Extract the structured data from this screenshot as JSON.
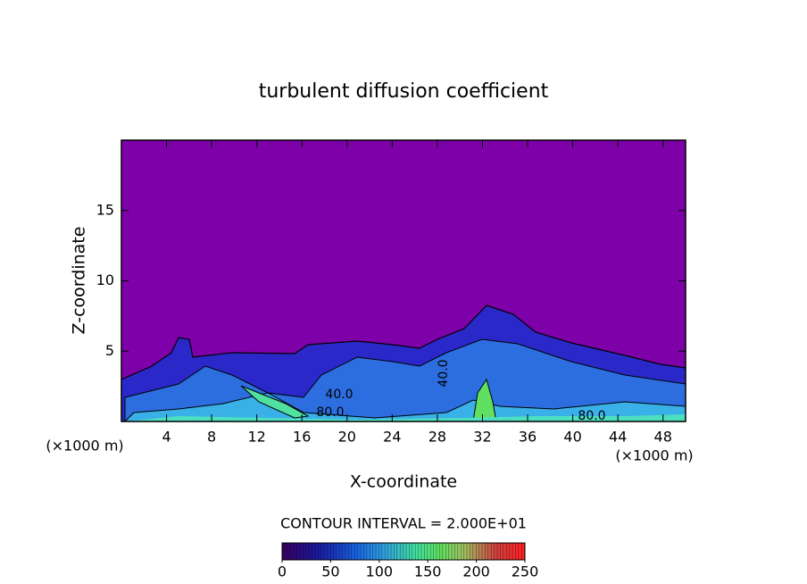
{
  "chart_data": {
    "type": "contour",
    "title": "turbulent diffusion coefficient",
    "x_label": "X-coordinate",
    "y_label": "Z-coordinate",
    "x_unit": "(×1000 m)",
    "xlim": [
      0,
      50
    ],
    "xticks": [
      4,
      8,
      12,
      16,
      20,
      24,
      28,
      32,
      36,
      40,
      44,
      48
    ],
    "ylim": [
      0,
      20
    ],
    "yticks": [
      5,
      10,
      15
    ],
    "background_color": "#7e00a8",
    "contour_labels": [
      "40.0",
      "80.0",
      "40.0",
      "80.0"
    ],
    "contour_interval_label": "CONTOUR INTERVAL = 2.000E+01",
    "colorbar": {
      "lim": [
        0,
        250
      ],
      "ticks": [
        0,
        50,
        100,
        150,
        200,
        250
      ]
    }
  }
}
